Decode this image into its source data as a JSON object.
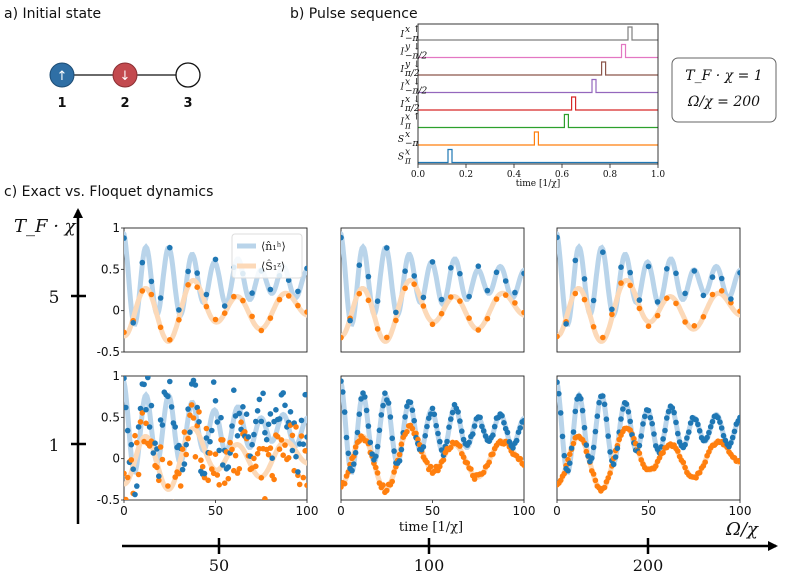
{
  "panels": {
    "a": {
      "title": "a) Initial state",
      "nodes": [
        {
          "number": "1",
          "symbol": "↑",
          "color": "#2f6fa5"
        },
        {
          "number": "2",
          "symbol": "↓",
          "color": "#c34a4f"
        },
        {
          "number": "3",
          "symbol": "",
          "color": "#ffffff"
        }
      ]
    },
    "b": {
      "title": "b) Pulse sequence",
      "xlabel": "time [1/χ]",
      "xticks": [
        "0.0",
        "0.2",
        "0.4",
        "0.6",
        "0.8",
        "1.0"
      ],
      "rows": [
        {
          "label": "I",
          "sup": "x ↑",
          "sub": "−π",
          "t": 0.875,
          "color": "#7f7f7f"
        },
        {
          "label": "I",
          "sup": "y ↓",
          "sub": "−π/2",
          "t": 0.848,
          "color": "#e377c2"
        },
        {
          "label": "I",
          "sup": "y ↓",
          "sub": "π/2",
          "t": 0.765,
          "color": "#8c564b"
        },
        {
          "label": "I",
          "sup": "x ↓",
          "sub": "−π/2",
          "t": 0.725,
          "color": "#9467bd"
        },
        {
          "label": "I",
          "sup": "x ↓",
          "sub": "π/2",
          "t": 0.64,
          "color": "#d62728"
        },
        {
          "label": "I",
          "sup": "x ↑",
          "sub": "π",
          "t": 0.61,
          "color": "#2ca02c"
        },
        {
          "label": "S",
          "sup": "x",
          "sub": "−π",
          "t": 0.485,
          "color": "#ff7f0e"
        },
        {
          "label": "S",
          "sup": "x",
          "sub": "π",
          "t": 0.125,
          "color": "#1f77b4"
        }
      ],
      "params_box": [
        "T_F · χ = 1",
        "Ω/χ = 200"
      ]
    },
    "c": {
      "title": "c) Exact vs. Floquet dynamics",
      "y_axis_label": "T_F · χ",
      "y_axis_ticks": [
        "5",
        "1"
      ],
      "x_axis_label": "Ω/χ",
      "x_axis_ticks": [
        "50",
        "100",
        "200"
      ],
      "subplot_xlabel": "time [1/χ]",
      "subplot_xticks": [
        "0",
        "50",
        "100"
      ],
      "subplot_yticks": [
        "1",
        "0.5",
        "0",
        "-0.5"
      ],
      "legend": [
        "⟨n̂₁ʰ⟩",
        "⟨Ŝ₁ᶻ⟩"
      ]
    }
  },
  "colors": {
    "blue": "#1f77b4",
    "orange": "#ff7f0e",
    "blue_light": "#b9d4ea",
    "orange_light": "#fcd9b8"
  },
  "chart_data": {
    "type": "scatter",
    "title": "c) Exact vs. Floquet dynamics",
    "xlabel": "time [1/χ]",
    "ylim": [
      -0.5,
      1.0
    ],
    "xlim": [
      0,
      100
    ],
    "grid": [
      {
        "T_F_chi": 5,
        "Omega_chi": 50,
        "floquet_noise": 0.05
      },
      {
        "T_F_chi": 5,
        "Omega_chi": 100,
        "floquet_noise": 0.05
      },
      {
        "T_F_chi": 5,
        "Omega_chi": 200,
        "floquet_noise": 0.05
      },
      {
        "T_F_chi": 1,
        "Omega_chi": 50,
        "floquet_noise": 0.35
      },
      {
        "T_F_chi": 1,
        "Omega_chi": 100,
        "floquet_noise": 0.04
      },
      {
        "T_F_chi": 1,
        "Omega_chi": 200,
        "floquet_noise": 0.02
      }
    ],
    "series": [
      {
        "name": "⟨n̂₁ʰ⟩ exact",
        "style": "line",
        "color": "#b9d4ea"
      },
      {
        "name": "⟨Ŝ₁ᶻ⟩ exact",
        "style": "line",
        "color": "#fcd9b8"
      },
      {
        "name": "⟨n̂₁ʰ⟩ Floquet",
        "style": "scatter",
        "color": "#1f77b4"
      },
      {
        "name": "⟨Ŝ₁ᶻ⟩ Floquet",
        "style": "scatter",
        "color": "#ff7f0e"
      }
    ]
  }
}
